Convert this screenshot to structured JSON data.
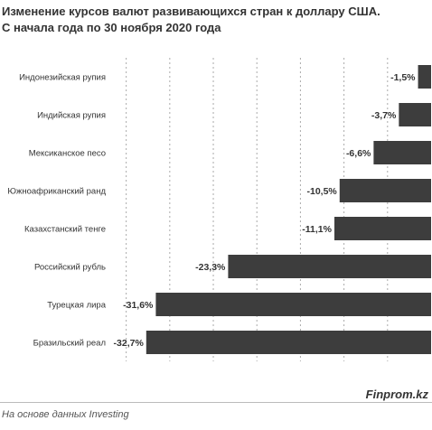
{
  "header": {
    "title_line1": "Изменение курсов валют развивающихся стран к доллару США.",
    "title_line2": "С начала года по 30 ноября 2020 года"
  },
  "footer": {
    "brand": "Finprom.kz",
    "source": "На основе данных Investing"
  },
  "colors": {
    "bar": "#3d3d3d",
    "gridline": "#aaaaaa",
    "text": "#333333"
  },
  "chart_data": {
    "type": "bar",
    "orientation": "horizontal",
    "categories": [
      "Индонезийская рупия",
      "Индийская рупия",
      "Мексиканское песо",
      "Южноафриканский ранд",
      "Казахстанский тенге",
      "Российский рубль",
      "Турецкая лира",
      "Бразильский реал"
    ],
    "values": [
      -1.5,
      -3.7,
      -6.6,
      -10.5,
      -11.1,
      -23.3,
      -31.6,
      -32.7
    ],
    "data_labels": [
      "-1,5%",
      "-3,7%",
      "-6,6%",
      "-10,5%",
      "-11,1%",
      "-23,3%",
      "-31,6%",
      "-32,7%"
    ],
    "xlim": [
      -36,
      0
    ],
    "grid": true
  }
}
